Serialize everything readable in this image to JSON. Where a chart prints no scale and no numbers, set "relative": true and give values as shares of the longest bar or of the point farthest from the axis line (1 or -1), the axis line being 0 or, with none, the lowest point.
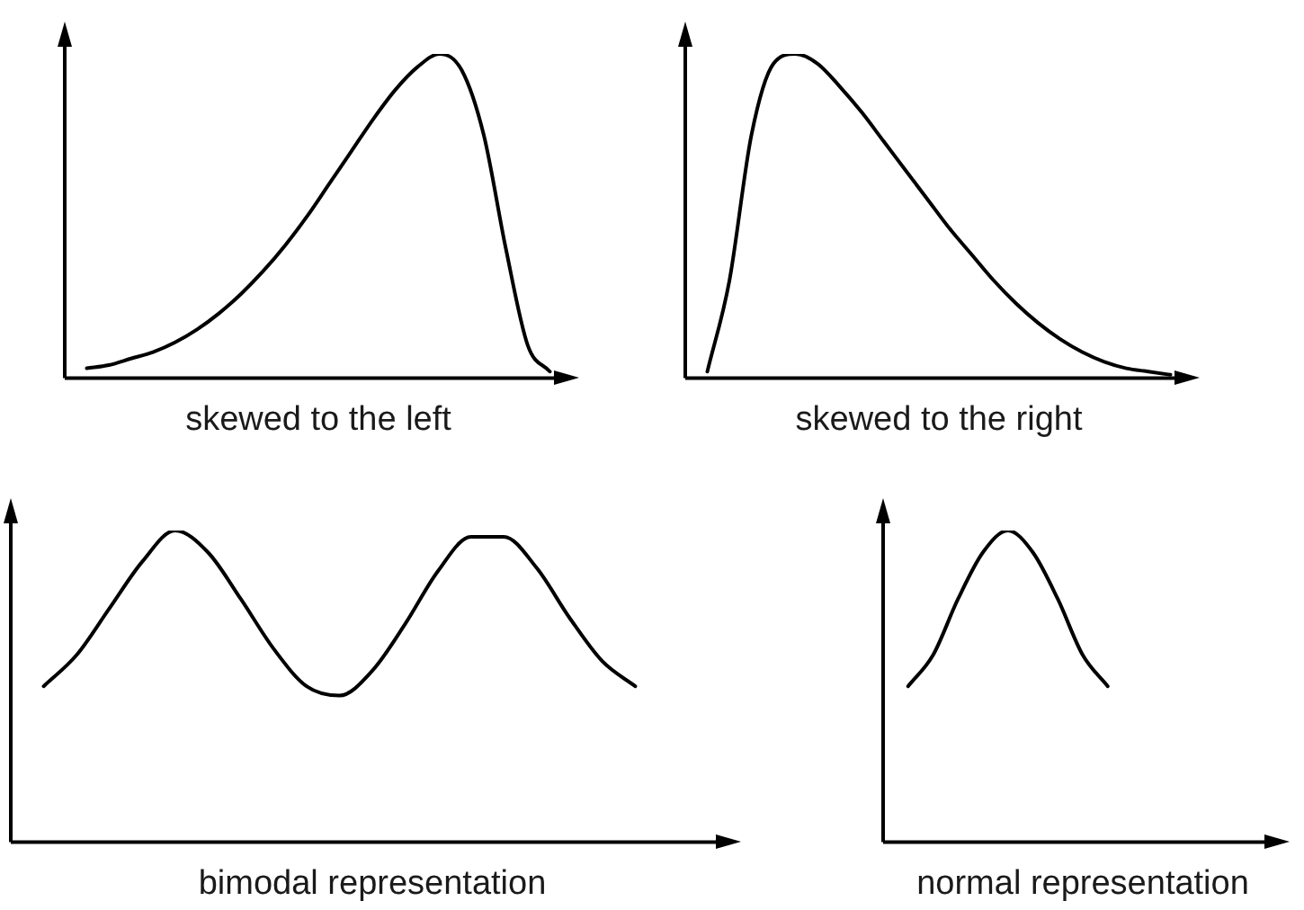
{
  "chart_data": [
    {
      "type": "line",
      "xlabel": "skewed to the left",
      "relative": true,
      "tick_labels": false,
      "grid": false,
      "legend": false,
      "marker": "none",
      "line_style": "solid",
      "categories": [
        null,
        null,
        null,
        null,
        null,
        null,
        null,
        null,
        null,
        null,
        null,
        null,
        null,
        null,
        null,
        null,
        null,
        null,
        null,
        null,
        null,
        null,
        null,
        null
      ],
      "series": [
        {
          "color": "#000000",
          "values": [
            null,
            0.03,
            0.04,
            0.06,
            0.08,
            0.11,
            0.15,
            0.2,
            0.26,
            0.33,
            0.41,
            0.5,
            0.6,
            0.7,
            0.8,
            0.89,
            0.96,
            1.0,
            0.95,
            0.75,
            0.4,
            0.1,
            0.02,
            null
          ]
        }
      ]
    },
    {
      "type": "line",
      "xlabel": "skewed to the right",
      "relative": true,
      "tick_labels": false,
      "grid": false,
      "legend": false,
      "marker": "none",
      "line_style": "solid",
      "categories": [
        null,
        null,
        null,
        null,
        null,
        null,
        null,
        null,
        null,
        null,
        null,
        null,
        null,
        null,
        null,
        null,
        null,
        null,
        null,
        null,
        null,
        null,
        null,
        null
      ],
      "series": [
        {
          "color": "#000000",
          "values": [
            null,
            0.02,
            0.3,
            0.75,
            0.97,
            1.0,
            0.97,
            0.9,
            0.82,
            0.73,
            0.64,
            0.55,
            0.46,
            0.38,
            0.3,
            0.23,
            0.17,
            0.12,
            0.08,
            0.05,
            0.03,
            0.02,
            0.01,
            null
          ]
        }
      ]
    },
    {
      "type": "line",
      "xlabel": "bimodal representation",
      "relative": true,
      "tick_labels": false,
      "grid": false,
      "legend": false,
      "marker": "none",
      "line_style": "solid",
      "categories": [
        null,
        null,
        null,
        null,
        null,
        null,
        null,
        null,
        null,
        null,
        null,
        null,
        null,
        null,
        null,
        null,
        null,
        null,
        null,
        null,
        null,
        null,
        null
      ],
      "series": [
        {
          "color": "#000000",
          "values": [
            null,
            0.5,
            0.6,
            0.75,
            0.9,
            1.0,
            0.93,
            0.78,
            0.62,
            0.5,
            0.47,
            0.55,
            0.7,
            0.87,
            0.98,
            0.98,
            0.88,
            0.72,
            0.58,
            0.5,
            null,
            null,
            null
          ]
        }
      ]
    },
    {
      "type": "line",
      "xlabel": "normal representation",
      "relative": true,
      "tick_labels": false,
      "grid": false,
      "legend": false,
      "marker": "none",
      "line_style": "solid",
      "categories": [
        null,
        null,
        null,
        null,
        null,
        null,
        null,
        null,
        null,
        null,
        null,
        null,
        null,
        null,
        null,
        null,
        null
      ],
      "series": [
        {
          "color": "#000000",
          "values": [
            null,
            0.5,
            0.6,
            0.78,
            0.93,
            1.0,
            0.93,
            0.78,
            0.6,
            0.5,
            null,
            null,
            null,
            null,
            null,
            null,
            null
          ]
        }
      ]
    }
  ]
}
